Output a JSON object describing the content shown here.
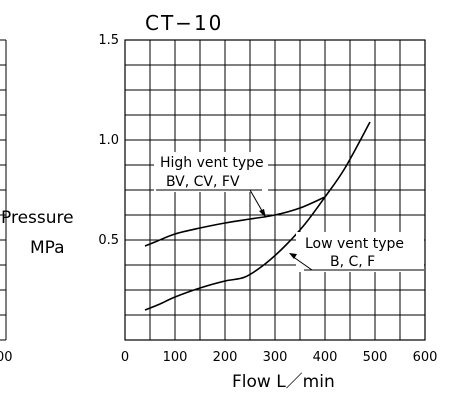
{
  "chart_data": {
    "type": "line",
    "title": "CT−10",
    "xlabel": "Flow L／min",
    "ylabel_top": "Pressure",
    "ylabel_bottom": "MPa",
    "xlim": [
      0,
      600
    ],
    "ylim": [
      0,
      1.5
    ],
    "grid": true,
    "x_ticks": [
      {
        "value": 0,
        "label": "0"
      },
      {
        "value": 100,
        "label": "100"
      },
      {
        "value": 200,
        "label": "200"
      },
      {
        "value": 300,
        "label": "300"
      },
      {
        "value": 400,
        "label": "400"
      },
      {
        "value": 500,
        "label": "500"
      },
      {
        "value": 600,
        "label": "600"
      }
    ],
    "y_ticks": [
      {
        "value": 0.5,
        "label": "0.5"
      },
      {
        "value": 1.0,
        "label": "1.0"
      },
      {
        "value": 1.5,
        "label": "1.5"
      }
    ],
    "x_grid_step": 50,
    "y_grid_step": 0.125,
    "series": [
      {
        "name": "High vent type",
        "types": "BV, CV, FV",
        "x": [
          40,
          60,
          100,
          150,
          200,
          250,
          300,
          350,
          400
        ],
        "y": [
          0.47,
          0.49,
          0.53,
          0.56,
          0.585,
          0.605,
          0.625,
          0.66,
          0.715
        ],
        "label_anchor": [
          270,
          0.615
        ]
      },
      {
        "name": "Low vent type",
        "types": "B, C, F",
        "x": [
          40,
          70,
          100,
          150,
          200,
          240,
          280,
          320,
          360,
          400,
          440,
          490
        ],
        "y": [
          0.15,
          0.18,
          0.215,
          0.26,
          0.295,
          0.315,
          0.38,
          0.47,
          0.58,
          0.715,
          0.86,
          1.09
        ],
        "label_anchor": [
          290,
          0.41
        ]
      }
    ],
    "truncated_left_tick": "00"
  }
}
